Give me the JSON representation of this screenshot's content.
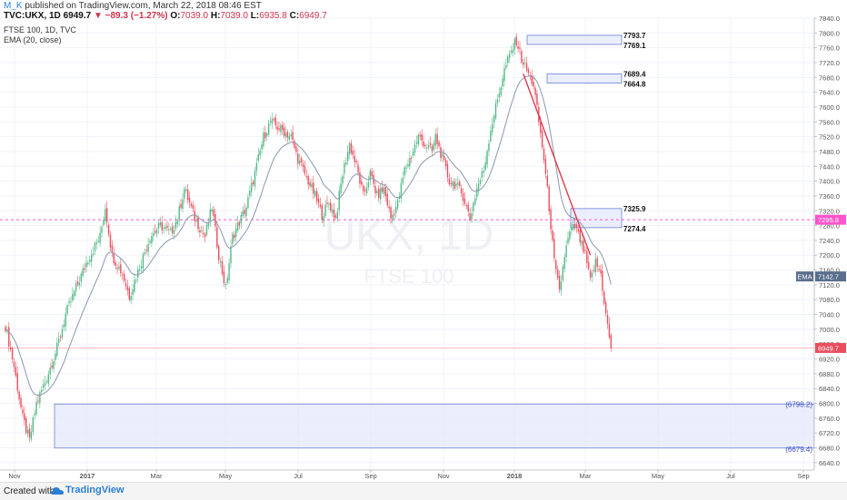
{
  "header": {
    "author": "M_K",
    "published": "published on TradingView.com, March 22, 2018 08:46 EST",
    "symbol": "TVC:UKX, 1D",
    "last": "6949.7",
    "change": "−89.3 (−1.27%)",
    "o_label": "O:",
    "o": "7039.0",
    "h_label": "H:",
    "h": "7039.0",
    "l_label": "L:",
    "l": "6935.8",
    "c_label": "C:",
    "c": "6949.7"
  },
  "legend": {
    "series": "FTSE 100, 1D, TVC",
    "indicator": "EMA (20, close)"
  },
  "watermark": {
    "symbol": "UKX, 1D",
    "name": "FTSE 100"
  },
  "footer": {
    "created": "Created with",
    "brand": "TradingView"
  },
  "colors": {
    "up": "#53b987",
    "down": "#eb4d5c",
    "ema": "#8a98ad",
    "zone_fill": "#e4e8fc",
    "zone_border": "#6b7fd7",
    "hline": "#ff55cc",
    "price_line": "#eb4d5c",
    "trend": "#e03a4d"
  },
  "chart_data": {
    "type": "candlestick",
    "y_axis": {
      "range": [
        6620,
        7840
      ],
      "ticks": [
        6640,
        6680,
        6720,
        6760,
        6800,
        6840,
        6880,
        6920,
        6960,
        7000,
        7040,
        7080,
        7120,
        7160,
        7200,
        7240,
        7280,
        7320,
        7360,
        7400,
        7440,
        7480,
        7520,
        7560,
        7600,
        7640,
        7680,
        7720,
        7760,
        7800,
        7840
      ],
      "tick_labels": [
        "6640.0",
        "6680.0",
        "6720.0",
        "6760.0",
        "6800.0",
        "6840.0",
        "6880.0",
        "6920.0",
        "6960.0",
        "7000.0",
        "7040.0",
        "7080.0",
        "7120.0",
        "7160.0",
        "7200.0",
        "7240.0",
        "7280.0",
        "7320.0",
        "7360.0",
        "7400.0",
        "7440.0",
        "7480.0",
        "7520.0",
        "7560.0",
        "7600.0",
        "7640.0",
        "7680.0",
        "7720.0",
        "7760.0",
        "7800.0",
        "7840.0"
      ]
    },
    "x_axis": {
      "labels": [
        "Nov",
        "2017",
        "Mar",
        "May",
        "Jul",
        "Sep",
        "Nov",
        "2018",
        "Mar",
        "May",
        "Jul",
        "Sep"
      ]
    },
    "price_line": {
      "value": 6949.7,
      "label": "6949.7"
    },
    "ema": {
      "value": 7142.7,
      "label": "EMA",
      "value_label": "7142.7"
    },
    "horizontal_line": {
      "value": 7295.8,
      "label": "7295.8"
    },
    "zones": [
      {
        "top": 7793.7,
        "bottom": 7769.1,
        "top_label": "7793.7",
        "bottom_label": "7769.1"
      },
      {
        "top": 7689.4,
        "bottom": 7664.8,
        "top_label": "7689.4",
        "bottom_label": "7664.8"
      },
      {
        "top": 7325.9,
        "bottom": 7274.4,
        "top_label": "7325.9",
        "bottom_label": "7274.4"
      },
      {
        "top": 6798.2,
        "bottom": 6679.4,
        "top_label": "(6798.2)",
        "bottom_label": "(6679.4)"
      }
    ],
    "trendline": {
      "from": 7690,
      "to": 7200
    },
    "anchors": [
      [
        0,
        7010
      ],
      [
        5,
        6900
      ],
      [
        10,
        6760
      ],
      [
        14,
        6700
      ],
      [
        18,
        6800
      ],
      [
        24,
        6870
      ],
      [
        30,
        6950
      ],
      [
        35,
        7040
      ],
      [
        40,
        7100
      ],
      [
        48,
        7190
      ],
      [
        55,
        7250
      ],
      [
        58,
        7330
      ],
      [
        62,
        7200
      ],
      [
        68,
        7150
      ],
      [
        72,
        7090
      ],
      [
        78,
        7170
      ],
      [
        84,
        7250
      ],
      [
        90,
        7280
      ],
      [
        96,
        7260
      ],
      [
        100,
        7300
      ],
      [
        104,
        7380
      ],
      [
        110,
        7300
      ],
      [
        116,
        7250
      ],
      [
        120,
        7330
      ],
      [
        124,
        7200
      ],
      [
        128,
        7110
      ],
      [
        132,
        7250
      ],
      [
        140,
        7330
      ],
      [
        146,
        7440
      ],
      [
        150,
        7520
      ],
      [
        154,
        7560
      ],
      [
        160,
        7540
      ],
      [
        166,
        7520
      ],
      [
        170,
        7460
      ],
      [
        176,
        7400
      ],
      [
        180,
        7360
      ],
      [
        184,
        7310
      ],
      [
        188,
        7340
      ],
      [
        192,
        7300
      ],
      [
        196,
        7420
      ],
      [
        200,
        7500
      ],
      [
        204,
        7440
      ],
      [
        208,
        7360
      ],
      [
        212,
        7420
      ],
      [
        216,
        7360
      ],
      [
        220,
        7380
      ],
      [
        224,
        7300
      ],
      [
        228,
        7340
      ],
      [
        232,
        7430
      ],
      [
        236,
        7470
      ],
      [
        240,
        7520
      ],
      [
        244,
        7500
      ],
      [
        248,
        7480
      ],
      [
        250,
        7520
      ],
      [
        254,
        7460
      ],
      [
        258,
        7400
      ],
      [
        262,
        7390
      ],
      [
        266,
        7360
      ],
      [
        270,
        7300
      ],
      [
        274,
        7380
      ],
      [
        278,
        7430
      ],
      [
        282,
        7540
      ],
      [
        286,
        7620
      ],
      [
        290,
        7700
      ],
      [
        294,
        7750
      ],
      [
        297,
        7780
      ],
      [
        300,
        7730
      ],
      [
        303,
        7700
      ],
      [
        307,
        7660
      ],
      [
        310,
        7560
      ],
      [
        313,
        7460
      ],
      [
        316,
        7330
      ],
      [
        319,
        7180
      ],
      [
        322,
        7100
      ],
      [
        325,
        7200
      ],
      [
        328,
        7260
      ],
      [
        331,
        7280
      ],
      [
        334,
        7240
      ],
      [
        337,
        7200
      ],
      [
        340,
        7130
      ],
      [
        343,
        7180
      ],
      [
        346,
        7150
      ],
      [
        349,
        7040
      ],
      [
        352,
        6950
      ]
    ]
  }
}
